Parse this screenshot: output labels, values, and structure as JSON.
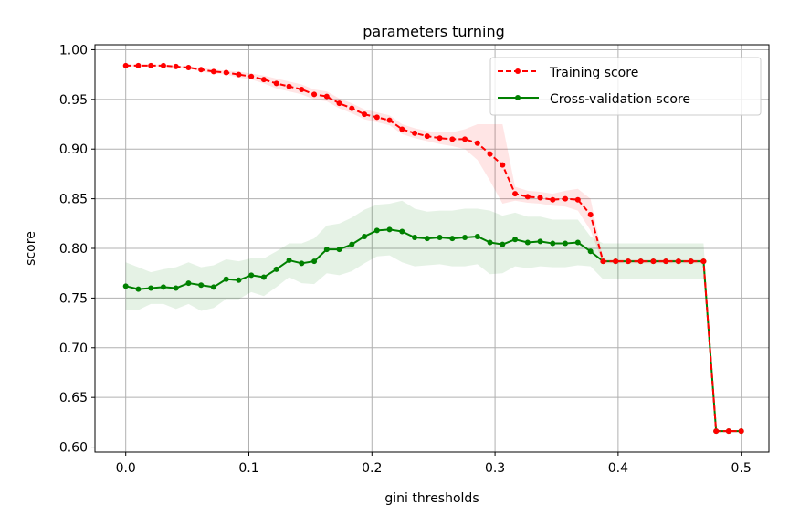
{
  "chart_data": {
    "type": "line",
    "title": "parameters turning",
    "xlabel": "gini thresholds",
    "ylabel": "score",
    "xlim": [
      -0.025,
      0.5225
    ],
    "ylim": [
      0.595,
      1.005
    ],
    "xticks": [
      0.0,
      0.1,
      0.2,
      0.3,
      0.4,
      0.5
    ],
    "xtick_labels": [
      "0.0",
      "0.1",
      "0.2",
      "0.3",
      "0.4",
      "0.5"
    ],
    "yticks": [
      0.6,
      0.65,
      0.7,
      0.75,
      0.8,
      0.85,
      0.9,
      0.95,
      1.0
    ],
    "ytick_labels": [
      "0.60",
      "0.65",
      "0.70",
      "0.75",
      "0.80",
      "0.85",
      "0.90",
      "0.95",
      "1.00"
    ],
    "grid": true,
    "legend_position": "upper right",
    "x": [
      0.0,
      0.0102,
      0.0204,
      0.0306,
      0.0408,
      0.051,
      0.0612,
      0.0714,
      0.0816,
      0.0918,
      0.102,
      0.1122,
      0.1224,
      0.1327,
      0.1429,
      0.1531,
      0.1633,
      0.1735,
      0.1837,
      0.1939,
      0.2041,
      0.2143,
      0.2245,
      0.2347,
      0.2449,
      0.2551,
      0.2653,
      0.2755,
      0.2857,
      0.2959,
      0.3061,
      0.3163,
      0.3265,
      0.3367,
      0.3469,
      0.3571,
      0.3673,
      0.3776,
      0.3878,
      0.398,
      0.4082,
      0.4184,
      0.4286,
      0.4388,
      0.449,
      0.4592,
      0.4694,
      0.4796,
      0.4898,
      0.5
    ],
    "series": [
      {
        "name": "Training score",
        "color": "#ff0000",
        "linestyle": "dashed",
        "marker": "circle",
        "values": [
          0.984,
          0.984,
          0.984,
          0.984,
          0.983,
          0.982,
          0.98,
          0.978,
          0.977,
          0.975,
          0.973,
          0.97,
          0.966,
          0.963,
          0.96,
          0.955,
          0.953,
          0.946,
          0.941,
          0.935,
          0.932,
          0.929,
          0.92,
          0.916,
          0.913,
          0.911,
          0.91,
          0.91,
          0.906,
          0.895,
          0.884,
          0.855,
          0.852,
          0.851,
          0.849,
          0.85,
          0.849,
          0.834,
          0.787,
          0.787,
          0.787,
          0.787,
          0.787,
          0.787,
          0.787,
          0.787,
          0.787,
          0.616,
          0.616,
          0.616
        ],
        "band_upper": [
          0.985,
          0.985,
          0.985,
          0.985,
          0.984,
          0.983,
          0.982,
          0.98,
          0.979,
          0.978,
          0.976,
          0.974,
          0.971,
          0.968,
          0.965,
          0.96,
          0.958,
          0.951,
          0.946,
          0.94,
          0.937,
          0.934,
          0.925,
          0.921,
          0.918,
          0.917,
          0.917,
          0.92,
          0.925,
          0.925,
          0.925,
          0.862,
          0.858,
          0.857,
          0.855,
          0.858,
          0.86,
          0.85,
          0.789,
          0.789,
          0.789,
          0.789,
          0.789,
          0.789,
          0.789,
          0.789,
          0.789,
          0.617,
          0.617,
          0.617
        ],
        "band_lower": [
          0.983,
          0.983,
          0.983,
          0.983,
          0.982,
          0.981,
          0.978,
          0.976,
          0.975,
          0.972,
          0.97,
          0.966,
          0.961,
          0.958,
          0.955,
          0.95,
          0.948,
          0.941,
          0.936,
          0.93,
          0.927,
          0.924,
          0.915,
          0.911,
          0.908,
          0.905,
          0.903,
          0.9,
          0.889,
          0.868,
          0.845,
          0.848,
          0.846,
          0.845,
          0.843,
          0.842,
          0.838,
          0.818,
          0.785,
          0.785,
          0.785,
          0.785,
          0.785,
          0.785,
          0.785,
          0.785,
          0.785,
          0.615,
          0.615,
          0.615
        ]
      },
      {
        "name": "Cross-validation score",
        "color": "#008000",
        "linestyle": "solid",
        "marker": "circle",
        "values": [
          0.762,
          0.759,
          0.76,
          0.761,
          0.76,
          0.765,
          0.763,
          0.761,
          0.769,
          0.768,
          0.773,
          0.771,
          0.779,
          0.788,
          0.785,
          0.787,
          0.799,
          0.799,
          0.804,
          0.812,
          0.818,
          0.819,
          0.817,
          0.811,
          0.81,
          0.811,
          0.81,
          0.811,
          0.812,
          0.806,
          0.804,
          0.809,
          0.806,
          0.807,
          0.805,
          0.805,
          0.806,
          0.797,
          0.787,
          0.787,
          0.787,
          0.787,
          0.787,
          0.787,
          0.787,
          0.787,
          0.787,
          0.616,
          0.616,
          0.616
        ],
        "band_upper": [
          0.786,
          0.781,
          0.776,
          0.779,
          0.781,
          0.786,
          0.781,
          0.783,
          0.789,
          0.787,
          0.79,
          0.79,
          0.797,
          0.805,
          0.805,
          0.81,
          0.823,
          0.825,
          0.831,
          0.839,
          0.844,
          0.845,
          0.848,
          0.84,
          0.837,
          0.838,
          0.838,
          0.84,
          0.84,
          0.838,
          0.833,
          0.836,
          0.832,
          0.832,
          0.829,
          0.829,
          0.829,
          0.812,
          0.805,
          0.805,
          0.805,
          0.805,
          0.805,
          0.805,
          0.805,
          0.805,
          0.805,
          0.617,
          0.617,
          0.617
        ],
        "band_lower": [
          0.738,
          0.738,
          0.744,
          0.744,
          0.739,
          0.744,
          0.737,
          0.74,
          0.749,
          0.749,
          0.756,
          0.752,
          0.761,
          0.771,
          0.765,
          0.764,
          0.775,
          0.773,
          0.777,
          0.785,
          0.792,
          0.793,
          0.786,
          0.782,
          0.783,
          0.784,
          0.782,
          0.782,
          0.784,
          0.774,
          0.775,
          0.782,
          0.78,
          0.782,
          0.781,
          0.781,
          0.783,
          0.782,
          0.769,
          0.769,
          0.769,
          0.769,
          0.769,
          0.769,
          0.769,
          0.769,
          0.769,
          0.615,
          0.615,
          0.615
        ]
      }
    ]
  }
}
